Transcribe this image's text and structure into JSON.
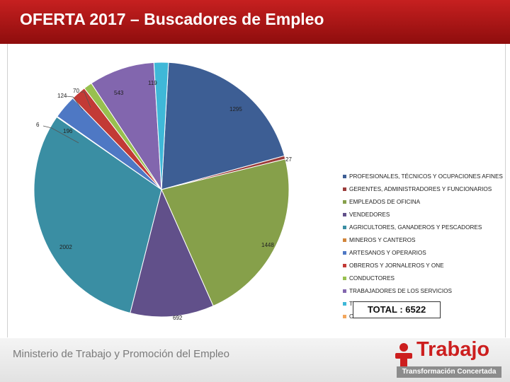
{
  "header": {
    "title": "OFERTA 2017 – Buscadores de Empleo"
  },
  "chart_data": {
    "type": "pie",
    "title": "OFERTA 2017 – Buscadores de Empleo",
    "total": 6522,
    "total_label": "TOTAL : 6522",
    "legend_position": "right",
    "slices": [
      {
        "label": "PROFESIONALES, TÉCNICOS Y OCUPACIONES AFINES",
        "value": 1295,
        "color": "#3d5e94"
      },
      {
        "label": "GERENTES, ADMINISTRADORES Y FUNCIONARIOS",
        "value": 27,
        "color": "#9b3c3a"
      },
      {
        "label": "EMPLEADOS DE OFICINA",
        "value": 1448,
        "color": "#86a04a"
      },
      {
        "label": "VENDEDORES",
        "value": 692,
        "color": "#61508a"
      },
      {
        "label": "AGRICULTORES, GANADEROS Y PESCADORES",
        "value": 2002,
        "color": "#3a8ea3"
      },
      {
        "label": "MINEROS Y CANTEROS",
        "value": 6,
        "color": "#d1853a"
      },
      {
        "label": "ARTESANOS Y OPERARIOS",
        "value": 196,
        "color": "#4e78c4"
      },
      {
        "label": "OBREROS Y JORNALEROS Y ONE",
        "value": 124,
        "color": "#c23a36"
      },
      {
        "label": "CONDUCTORES",
        "value": 70,
        "color": "#98c04f"
      },
      {
        "label": "TRABAJADORES DE LOS SERVICIOS",
        "value": 543,
        "color": "#8266ae"
      },
      {
        "label": "TRABAJADORES DEL HOGAR",
        "value": 119,
        "color": "#3fb8d8"
      },
      {
        "label": "OTROS",
        "value": 0,
        "color": "#f2a75e"
      }
    ]
  },
  "footer": {
    "ministry": "Ministerio de Trabajo y Promoción del Empleo",
    "brand_name": "Trabajo",
    "brand_tagline": "Transformación Concertada",
    "brand_color": "#cc1e1e"
  }
}
